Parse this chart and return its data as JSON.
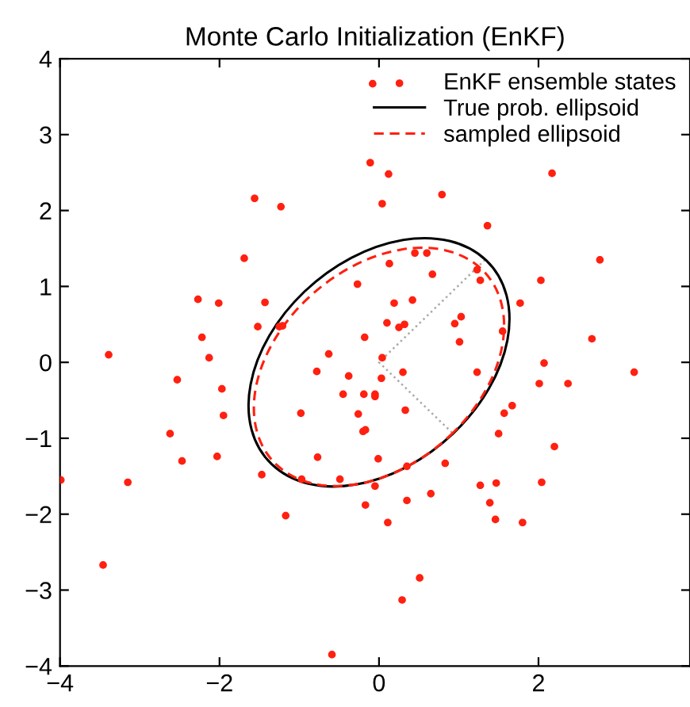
{
  "chart_data": {
    "type": "scatter",
    "title": "Monte Carlo Initialization (EnKF)",
    "annotations": [
      "True prob. ellipsoid",
      "sampled ellipsoid"
    ],
    "xlim": [
      -4,
      3.9
    ],
    "ylim": [
      -4,
      4
    ],
    "xticks": [
      -4,
      -2,
      0,
      2
    ],
    "yticks": [
      -4,
      -3,
      -2,
      -1,
      0,
      1,
      2,
      3,
      4
    ],
    "grid": false,
    "legend": "top right",
    "series": [
      {
        "name": "EnKF ensemble states",
        "marker": "circle",
        "color": "#ff2010",
        "x": [
          -3.39,
          -1.56,
          -1.23,
          -1.69,
          -2.27,
          -2.01,
          -1.43,
          -1.52,
          -1.25,
          -1.21,
          -2.22,
          -2.13,
          -0.27,
          -0.18,
          -0.63,
          -0.08,
          -0.11,
          0.12,
          0.04,
          2.17,
          0.79,
          1.36,
          0.45,
          0.6,
          0.13,
          1.23,
          1.27,
          0.67,
          2.77,
          2.03,
          0.19,
          0.42,
          1.77,
          0.1,
          0.25,
          0.32,
          0.95,
          1.03,
          1.01,
          1.55,
          2.67,
          0.04,
          2.07,
          -2.53,
          -1.97,
          -1.95,
          -2.62,
          -2.47,
          -2.03,
          -3.99,
          -3.15,
          -1.47,
          -0.97,
          -0.77,
          -0.49,
          -0.98,
          -0.78,
          -0.38,
          -0.45,
          -0.19,
          -0.05,
          -0.05,
          -0.26,
          -0.2,
          -0.17,
          -0.01,
          -0.17,
          -1.17,
          -3.46,
          -0.59,
          0.3,
          1.23,
          3.2,
          2.01,
          2.37,
          0.03,
          0.33,
          1.67,
          1.57,
          1.5,
          2.2,
          0.35,
          0.83,
          1.27,
          1.47,
          2.04,
          -0.05,
          0.65,
          0.35,
          1.39,
          1.46,
          1.8,
          0.11,
          0.51,
          0.29
        ],
        "values": [
          0.1,
          2.16,
          2.05,
          1.37,
          0.83,
          0.78,
          0.79,
          0.47,
          0.47,
          0.48,
          0.33,
          0.06,
          1.03,
          0.33,
          0.11,
          3.67,
          2.63,
          2.48,
          2.09,
          2.49,
          2.21,
          1.8,
          1.44,
          1.44,
          1.3,
          1.22,
          1.08,
          1.16,
          1.35,
          1.08,
          0.78,
          0.82,
          0.78,
          0.52,
          0.46,
          0.5,
          0.51,
          0.6,
          0.27,
          0.41,
          0.31,
          0.06,
          -0.01,
          -0.23,
          -0.35,
          -0.7,
          -0.94,
          -1.3,
          -1.24,
          -1.55,
          -1.58,
          -1.48,
          -1.54,
          -1.25,
          -1.54,
          -0.67,
          -0.12,
          -0.18,
          -0.42,
          -0.42,
          -0.42,
          -0.45,
          -0.68,
          -0.91,
          -0.89,
          -1.27,
          -1.88,
          -2.02,
          -2.67,
          -3.85,
          -0.13,
          -0.13,
          -0.13,
          -0.28,
          -0.28,
          -0.21,
          -0.63,
          -0.57,
          -0.67,
          -0.94,
          -1.11,
          -1.37,
          -1.33,
          -1.62,
          -1.59,
          -1.58,
          -1.63,
          -1.73,
          -1.82,
          -1.85,
          -2.07,
          -2.11,
          -2.11,
          -2.84,
          -3.13
        ]
      },
      {
        "type": "line",
        "line_style": "dotted",
        "color": "#aaaaaa",
        "x": [
          1.33,
          0,
          0.93
        ],
        "values": [
          1.35,
          0,
          -0.94
        ]
      }
    ]
  }
}
